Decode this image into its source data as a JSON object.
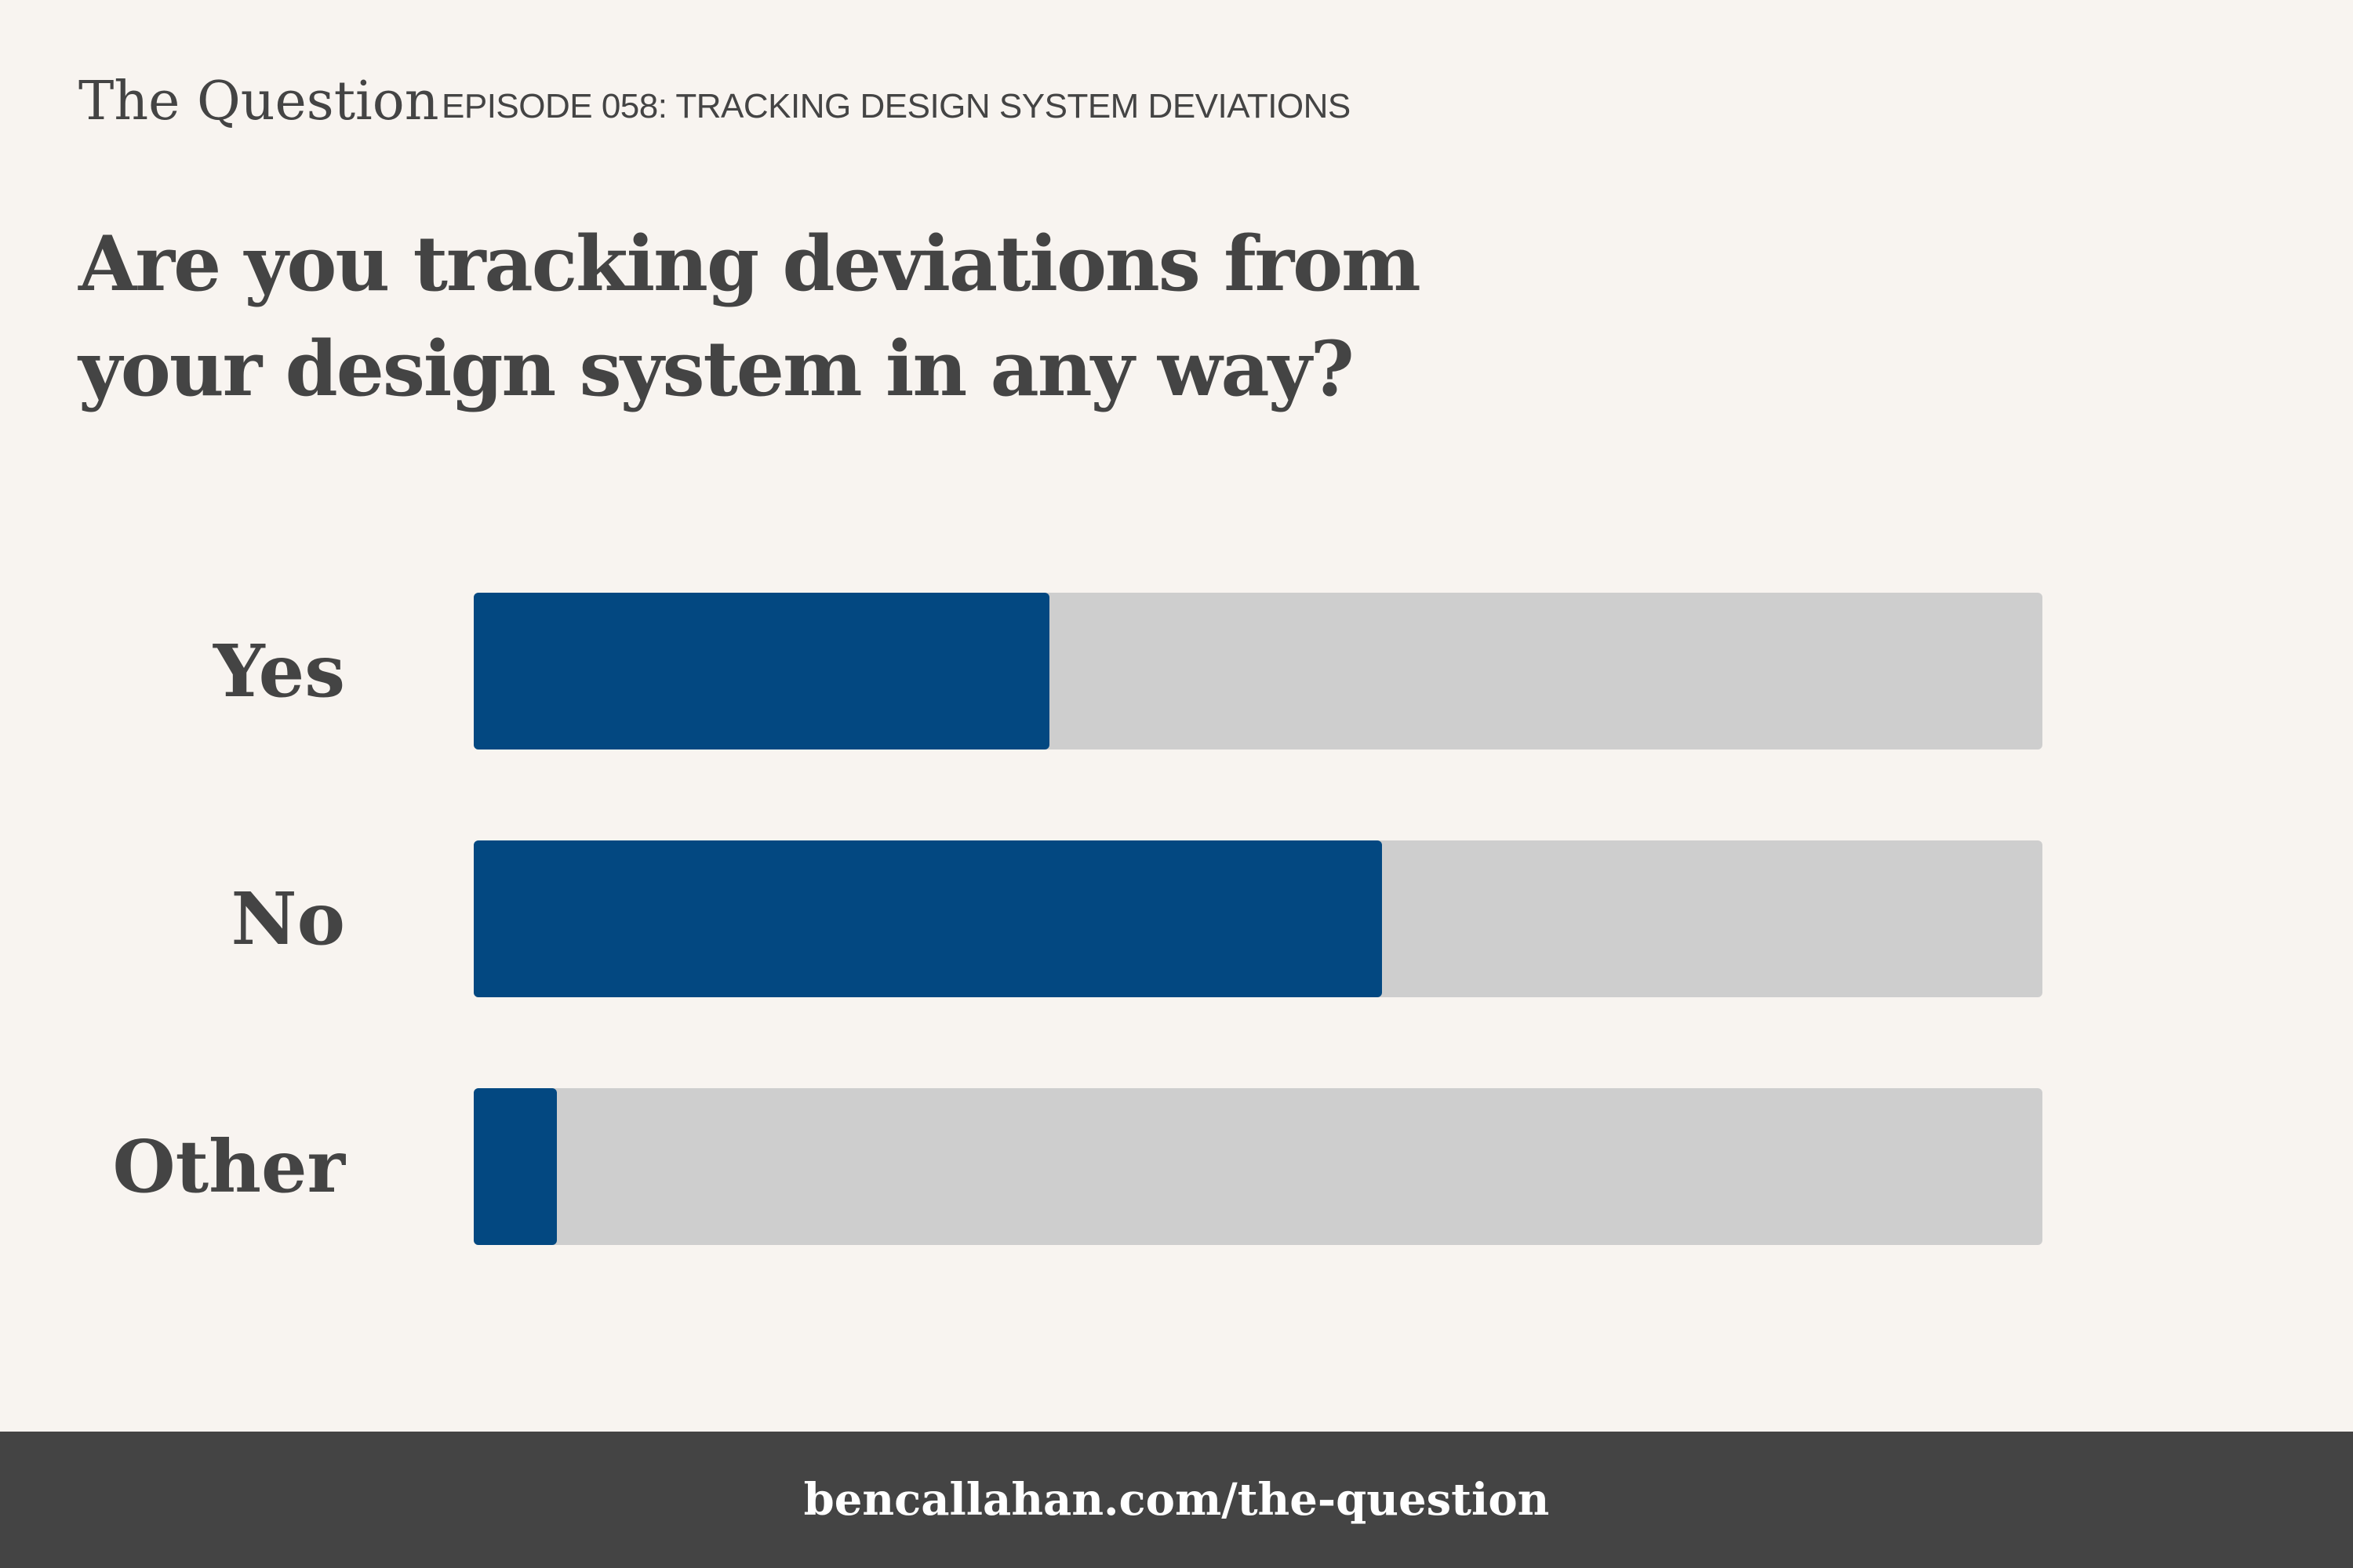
{
  "header": {
    "brand": "The Question",
    "episode": "EPISODE 058: TRACKING DESIGN SYSTEM DEVIATIONS"
  },
  "question": "Are you tracking deviations from your design system in any way?",
  "chart_data": {
    "type": "bar",
    "orientation": "horizontal",
    "categories": [
      "Yes",
      "No",
      "Other"
    ],
    "values": [
      36.7,
      57.9,
      5.3
    ],
    "unit": "percent",
    "xlim": [
      0,
      100
    ],
    "grid": false,
    "legend": "none",
    "colors": {
      "bar": "#034881",
      "track": "#cecece"
    }
  },
  "footer": {
    "link": "bencallahan.com/the-question"
  }
}
